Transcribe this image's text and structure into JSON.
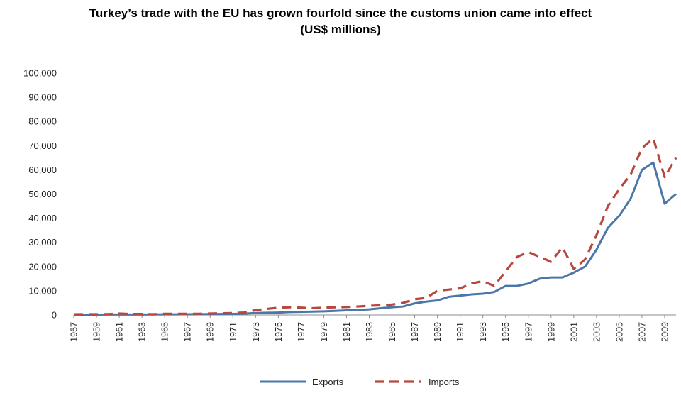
{
  "chart_data": {
    "type": "line",
    "title": "Turkey’s trade with the EU has grown fourfold since the customs union came into effect",
    "subtitle": "(US$ millions)",
    "xlabel": "",
    "ylabel": "",
    "ylim": [
      0,
      100000
    ],
    "yticks": [
      "0",
      "10,000",
      "20,000",
      "30,000",
      "40,000",
      "50,000",
      "60,000",
      "70,000",
      "80,000",
      "90,000",
      "100,000"
    ],
    "xlim": [
      1957,
      2010
    ],
    "xticks": [
      "1957",
      "1959",
      "1961",
      "1963",
      "1965",
      "1967",
      "1969",
      "1971",
      "1973",
      "1975",
      "1977",
      "1979",
      "1981",
      "1983",
      "1985",
      "1987",
      "1989",
      "1991",
      "1993",
      "1995",
      "1997",
      "1999",
      "2001",
      "2003",
      "2005",
      "2007",
      "2009"
    ],
    "grid": false,
    "legend": "bottom",
    "x": [
      1957,
      1958,
      1959,
      1960,
      1961,
      1962,
      1963,
      1964,
      1965,
      1966,
      1967,
      1968,
      1969,
      1970,
      1971,
      1972,
      1973,
      1974,
      1975,
      1976,
      1977,
      1978,
      1979,
      1980,
      1981,
      1982,
      1983,
      1984,
      1985,
      1986,
      1987,
      1988,
      1989,
      1990,
      1991,
      1992,
      1993,
      1994,
      1995,
      1996,
      1997,
      1998,
      1999,
      2000,
      2001,
      2002,
      2003,
      2004,
      2005,
      2006,
      2007,
      2008,
      2009,
      2010
    ],
    "series": [
      {
        "name": "Exports",
        "color": "#4a77a8",
        "dash": "solid",
        "values": [
          150,
          150,
          160,
          170,
          170,
          180,
          200,
          220,
          250,
          270,
          300,
          330,
          350,
          400,
          450,
          550,
          800,
          900,
          1000,
          1200,
          1300,
          1400,
          1500,
          1700,
          1900,
          2100,
          2300,
          2800,
          3200,
          3500,
          4800,
          5500,
          6000,
          7500,
          8000,
          8500,
          8800,
          9500,
          12000,
          12000,
          13000,
          15000,
          15500,
          15500,
          17500,
          20000,
          27000,
          36000,
          41000,
          48000,
          60000,
          63000,
          46000,
          50000
        ]
      },
      {
        "name": "Imports",
        "color": "#b8483e",
        "dash": "dashed",
        "values": [
          300,
          300,
          300,
          350,
          600,
          400,
          400,
          300,
          500,
          500,
          500,
          500,
          600,
          700,
          800,
          1000,
          2000,
          2500,
          3000,
          3200,
          3000,
          2800,
          3000,
          3200,
          3300,
          3500,
          3800,
          4000,
          4300,
          5000,
          6500,
          7000,
          10000,
          10500,
          11000,
          13000,
          14000,
          12000,
          18000,
          24000,
          26000,
          24000,
          22000,
          28000,
          19000,
          23000,
          33000,
          45000,
          52000,
          58000,
          69000,
          73000,
          57000,
          65000
        ]
      }
    ]
  }
}
